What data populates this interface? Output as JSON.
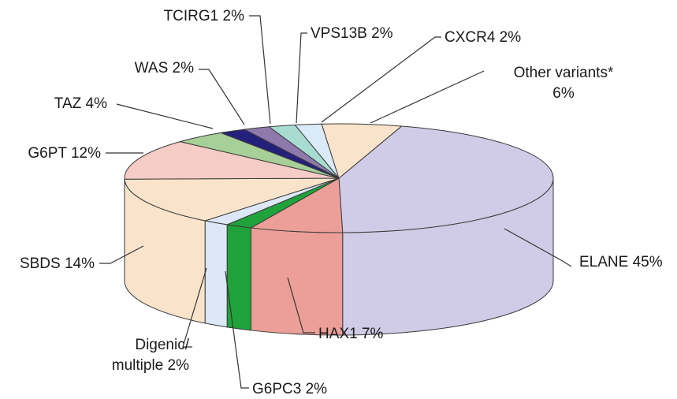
{
  "chart_data": {
    "type": "pie",
    "style": "3d-exploded-none",
    "start_angle_deg": 287,
    "direction": "clockwise",
    "slices": [
      {
        "label": "ELANE",
        "value": 45,
        "text": "ELANE 45%",
        "color": "#d0cbe6"
      },
      {
        "label": "HAX1",
        "value": 7,
        "text": "HAX1 7%",
        "color": "#ec9f98"
      },
      {
        "label": "G6PC3",
        "value": 2,
        "text": "G6PC3 2%",
        "color": "#1fa33a"
      },
      {
        "label": "Digenic/ multiple",
        "value": 2,
        "text_lines": [
          "Digenic/",
          "multiple 2%"
        ],
        "color": "#dce8f7"
      },
      {
        "label": "SBDS",
        "value": 14,
        "text": "SBDS 14%",
        "color": "#f9e4cb"
      },
      {
        "label": "G6PT",
        "value": 12,
        "text": "G6PT 12%",
        "color": "#f5cdc6"
      },
      {
        "label": "TAZ",
        "value": 4,
        "text": "TAZ 4%",
        "color": "#a7cf98"
      },
      {
        "label": "WAS",
        "value": 2,
        "text": "WAS 2%",
        "color": "#24217c"
      },
      {
        "label": "TCIRG1",
        "value": 2,
        "text": "TCIRG1 2%",
        "color": "#8e78ac"
      },
      {
        "label": "VPS13B",
        "value": 2,
        "text": "VPS13B 2%",
        "color": "#a8dcd1"
      },
      {
        "label": "CXCR4",
        "value": 2,
        "text": "CXCR4 2%",
        "color": "#dbeaf8"
      },
      {
        "label": "Other variants*",
        "value": 6,
        "text_lines": [
          "Other variants*",
          "6%"
        ],
        "color": "#f9e4cb"
      }
    ]
  }
}
